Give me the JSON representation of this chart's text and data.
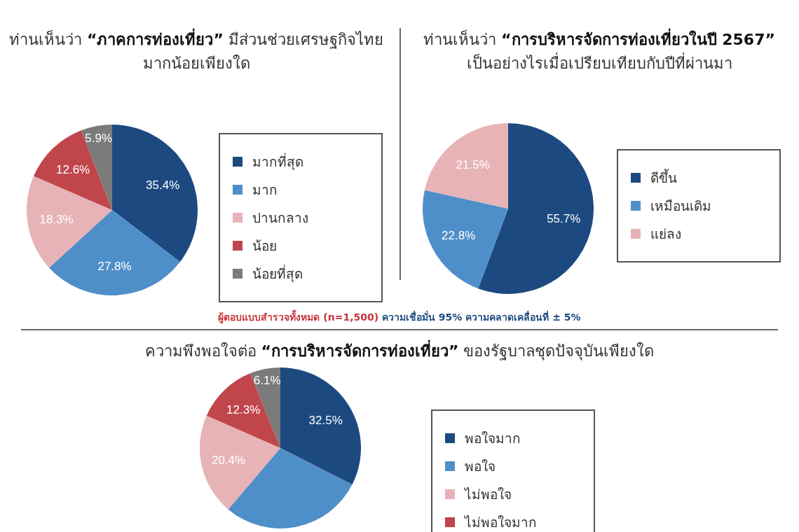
{
  "chart_data": [
    {
      "type": "pie",
      "title": "ท่านเห็นว่า “ภาคการท่องเที่ยว” มีส่วนช่วยเศรษฐกิจไทยมากน้อยเพียงใด",
      "categories": [
        "มากที่สุด",
        "มาก",
        "ปานกลาง",
        "น้อย",
        "น้อยที่สุด"
      ],
      "values": [
        35.4,
        27.8,
        18.3,
        12.6,
        5.9
      ],
      "colors": [
        "#1c4a80",
        "#4f8fc9",
        "#e7b3b7",
        "#c0464c",
        "#7b7b7b"
      ],
      "value_labels": [
        "35.4%",
        "27.8%",
        "18.3%",
        "12.6%",
        "5.9%"
      ],
      "legend": "right",
      "annotations": [
        "ผู้ตอบแบบสำรวจทั้งหมด (n=1,500)",
        "ความเชื่อมั่น 95% ความคลาดเคลื่อนที่ ± 5%"
      ]
    },
    {
      "type": "pie",
      "title": "ท่านเห็นว่า “การบริหารจัดการท่องเที่ยวในปี 2567” เป็นอย่างไรเมื่อเปรียบเทียบกับปีที่ผ่านมา",
      "categories": [
        "ดีขึ้น",
        "เหมือนเดิม",
        "แย่ลง"
      ],
      "values": [
        55.7,
        22.8,
        21.5
      ],
      "colors": [
        "#1c4a80",
        "#4f8fc9",
        "#e7b3b7"
      ],
      "value_labels": [
        "55.7%",
        "22.8%",
        "21.5%"
      ],
      "legend": "right"
    },
    {
      "type": "pie",
      "title": "ความพึงพอใจต่อ “การบริหารจัดการท่องเที่ยว” ของรัฐบาลชุดปัจจุบันเพียงใด",
      "categories": [
        "พอใจมาก",
        "พอใจ",
        "ไม่พอใจ",
        "ไม่พอใจมาก",
        null
      ],
      "values": [
        32.5,
        28.7,
        20.4,
        12.3,
        6.1
      ],
      "colors": [
        "#1c4a80",
        "#4f8fc9",
        "#e7b3b7",
        "#c0464c",
        "#7b7b7b"
      ],
      "value_labels": [
        "32.5%",
        null,
        "20.4%",
        "12.3%",
        "6.1%"
      ],
      "legend": "right"
    }
  ]
}
